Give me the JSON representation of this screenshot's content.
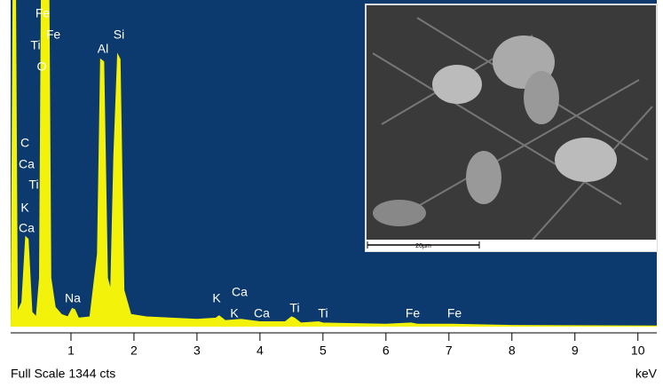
{
  "chart_data": {
    "type": "area",
    "color": "#f2f20a",
    "background": "#0d3a6e",
    "x": [
      0.05,
      0.08,
      0.12,
      0.15,
      0.22,
      0.28,
      0.32,
      0.38,
      0.45,
      0.5,
      0.53,
      0.6,
      0.65,
      0.68,
      0.75,
      0.85,
      0.95,
      1.02,
      1.06,
      1.12,
      1.3,
      1.42,
      1.47,
      1.52,
      1.58,
      1.63,
      1.68,
      1.74,
      1.78,
      1.84,
      1.95,
      2.2,
      2.6,
      3.0,
      3.3,
      3.35,
      3.45,
      3.7,
      4.0,
      4.4,
      4.5,
      4.55,
      4.65,
      4.93,
      5.0,
      6.0,
      6.4,
      6.5,
      7.06,
      8.0,
      10.3
    ],
    "values": [
      0,
      1400,
      1400,
      60,
      100,
      370,
      360,
      60,
      40,
      200,
      1400,
      1400,
      1400,
      200,
      80,
      50,
      40,
      75,
      70,
      35,
      40,
      300,
      1100,
      1090,
      200,
      150,
      700,
      1120,
      1100,
      150,
      50,
      40,
      35,
      30,
      35,
      45,
      25,
      30,
      20,
      20,
      40,
      35,
      15,
      20,
      15,
      10,
      15,
      10,
      10,
      5,
      3
    ],
    "xlim": [
      0,
      10.3
    ],
    "ylim": [
      0,
      1344
    ],
    "xticks": [
      1,
      2,
      3,
      4,
      5,
      6,
      7,
      8,
      9,
      10
    ],
    "full_scale_label": "Full Scale 1344 cts",
    "x_unit": "keV",
    "annotations": [
      "Fe",
      "Fe",
      "Ti",
      "O",
      "Al",
      "Si",
      "C",
      "Ca",
      "Ti",
      "K",
      "Ca",
      "Na",
      "K",
      "Ca",
      "K",
      "Ca",
      "Ti",
      "Ti",
      "Fe",
      "Fe"
    ],
    "inset_scale_label": "20µm"
  }
}
